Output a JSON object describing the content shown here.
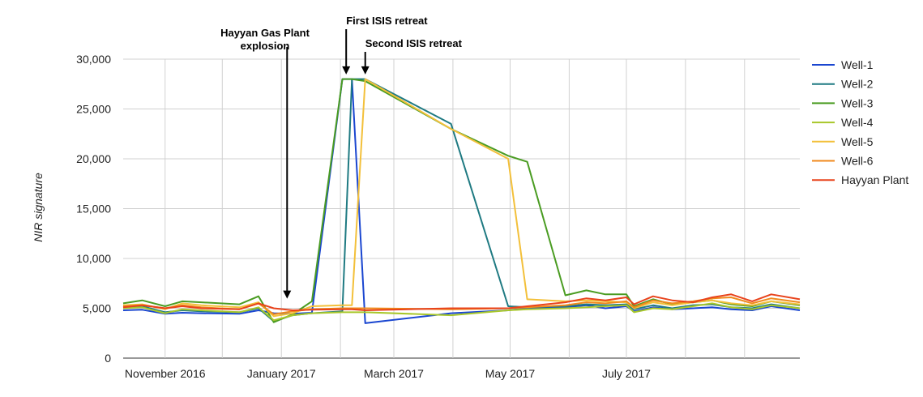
{
  "chart_data": {
    "type": "line",
    "title": "",
    "xlabel": "",
    "ylabel": "NIR signature",
    "xlim": [
      "2016-10-10",
      "2017-09-30"
    ],
    "ylim": [
      0,
      30000
    ],
    "yticks": [
      0,
      5000,
      10000,
      15000,
      20000,
      25000,
      30000
    ],
    "ytick_labels": [
      "0",
      "5,000",
      "10,000",
      "15,000",
      "20,000",
      "25,000",
      "30,000"
    ],
    "xtick_labels": [
      {
        "date": "2016-11-01",
        "label": "November 2016"
      },
      {
        "date": "2017-01-01",
        "label": "January 2017"
      },
      {
        "date": "2017-03-01",
        "label": "March 2017"
      },
      {
        "date": "2017-05-01",
        "label": "May 2017"
      },
      {
        "date": "2017-07-01",
        "label": "July 2017"
      }
    ],
    "grid": true,
    "legend_position": "right",
    "annotations": [
      {
        "text": [
          "Hayyan Gas Plant",
          "explosion"
        ],
        "date": "2017-01-04",
        "value": 5800
      },
      {
        "text": [
          "First ISIS retreat"
        ],
        "date": "2017-02-04",
        "value": 28300
      },
      {
        "text": [
          "Second ISIS retreat"
        ],
        "date": "2017-02-14",
        "value": 28300
      }
    ],
    "series": [
      {
        "name": "Well-1",
        "color": "#1a46d0",
        "points": [
          [
            "2016-10-10",
            4800
          ],
          [
            "2016-10-20",
            4850
          ],
          [
            "2016-11-01",
            4450
          ],
          [
            "2016-11-10",
            4550
          ],
          [
            "2016-11-20",
            4500
          ],
          [
            "2016-12-10",
            4450
          ],
          [
            "2016-12-20",
            4800
          ],
          [
            "2016-12-28",
            4500
          ],
          [
            "2017-01-07",
            4450
          ],
          [
            "2017-01-17",
            4550
          ],
          [
            "2017-02-02",
            28000
          ],
          [
            "2017-02-07",
            28000
          ],
          [
            "2017-02-14",
            3500
          ],
          [
            "2017-03-31",
            4500
          ],
          [
            "2017-04-30",
            4800
          ],
          [
            "2017-05-10",
            5000
          ],
          [
            "2017-05-30",
            5100
          ],
          [
            "2017-06-10",
            5300
          ],
          [
            "2017-06-20",
            5000
          ],
          [
            "2017-07-01",
            5200
          ],
          [
            "2017-07-05",
            4700
          ],
          [
            "2017-07-15",
            5100
          ],
          [
            "2017-07-25",
            4900
          ],
          [
            "2017-08-05",
            5000
          ],
          [
            "2017-08-15",
            5100
          ],
          [
            "2017-08-25",
            4900
          ],
          [
            "2017-09-05",
            4800
          ],
          [
            "2017-09-15",
            5200
          ],
          [
            "2017-09-30",
            4800
          ]
        ]
      },
      {
        "name": "Well-2",
        "color": "#1f7a82",
        "points": [
          [
            "2016-10-10",
            5100
          ],
          [
            "2016-10-20",
            5200
          ],
          [
            "2016-11-01",
            4600
          ],
          [
            "2016-11-10",
            4800
          ],
          [
            "2016-11-20",
            4700
          ],
          [
            "2016-12-10",
            4600
          ],
          [
            "2016-12-20",
            5000
          ],
          [
            "2016-12-28",
            3700
          ],
          [
            "2017-01-07",
            4300
          ],
          [
            "2017-01-17",
            4500
          ],
          [
            "2017-02-02",
            4700
          ],
          [
            "2017-02-07",
            28000
          ],
          [
            "2017-02-14",
            28000
          ],
          [
            "2017-03-31",
            23500
          ],
          [
            "2017-04-30",
            5200
          ],
          [
            "2017-05-10",
            5100
          ],
          [
            "2017-05-30",
            5200
          ],
          [
            "2017-06-10",
            5400
          ],
          [
            "2017-06-20",
            5300
          ],
          [
            "2017-07-01",
            5400
          ],
          [
            "2017-07-05",
            4900
          ],
          [
            "2017-07-15",
            5300
          ],
          [
            "2017-07-25",
            5000
          ],
          [
            "2017-08-05",
            5300
          ],
          [
            "2017-08-15",
            5400
          ],
          [
            "2017-08-25",
            5100
          ],
          [
            "2017-09-05",
            5000
          ],
          [
            "2017-09-15",
            5400
          ],
          [
            "2017-09-30",
            5000
          ]
        ]
      },
      {
        "name": "Well-3",
        "color": "#4a9c22",
        "points": [
          [
            "2016-10-10",
            5500
          ],
          [
            "2016-10-20",
            5800
          ],
          [
            "2016-11-01",
            5200
          ],
          [
            "2016-11-10",
            5700
          ],
          [
            "2016-11-20",
            5600
          ],
          [
            "2016-12-10",
            5400
          ],
          [
            "2016-12-20",
            6200
          ],
          [
            "2016-12-28",
            3600
          ],
          [
            "2017-01-07",
            4400
          ],
          [
            "2017-01-17",
            5700
          ],
          [
            "2017-02-02",
            28000
          ],
          [
            "2017-02-07",
            28000
          ],
          [
            "2017-02-14",
            27800
          ],
          [
            "2017-03-31",
            23000
          ],
          [
            "2017-04-30",
            20300
          ],
          [
            "2017-05-10",
            19700
          ],
          [
            "2017-05-30",
            6300
          ],
          [
            "2017-06-10",
            6800
          ],
          [
            "2017-06-20",
            6400
          ],
          [
            "2017-07-01",
            6400
          ],
          [
            "2017-07-05",
            5200
          ],
          [
            "2017-07-15",
            5900
          ],
          [
            "2017-07-25",
            5400
          ],
          [
            "2017-08-05",
            5600
          ],
          [
            "2017-08-15",
            5800
          ],
          [
            "2017-08-25",
            5400
          ],
          [
            "2017-09-05",
            5200
          ],
          [
            "2017-09-15",
            5700
          ],
          [
            "2017-09-30",
            5300
          ]
        ]
      },
      {
        "name": "Well-4",
        "color": "#a8c72a",
        "points": [
          [
            "2016-10-10",
            5000
          ],
          [
            "2016-10-20",
            5100
          ],
          [
            "2016-11-01",
            4500
          ],
          [
            "2016-11-10",
            4900
          ],
          [
            "2016-11-20",
            4800
          ],
          [
            "2016-12-10",
            4600
          ],
          [
            "2016-12-20",
            5100
          ],
          [
            "2016-12-28",
            3800
          ],
          [
            "2017-01-07",
            4300
          ],
          [
            "2017-01-17",
            4500
          ],
          [
            "2017-02-02",
            4600
          ],
          [
            "2017-02-07",
            4600
          ],
          [
            "2017-02-14",
            4600
          ],
          [
            "2017-03-31",
            4300
          ],
          [
            "2017-04-30",
            4800
          ],
          [
            "2017-05-10",
            4900
          ],
          [
            "2017-05-30",
            5000
          ],
          [
            "2017-06-10",
            5100
          ],
          [
            "2017-06-20",
            5200
          ],
          [
            "2017-07-01",
            5300
          ],
          [
            "2017-07-05",
            4600
          ],
          [
            "2017-07-15",
            5000
          ],
          [
            "2017-07-25",
            4900
          ],
          [
            "2017-08-05",
            5200
          ],
          [
            "2017-08-15",
            5500
          ],
          [
            "2017-08-25",
            5100
          ],
          [
            "2017-09-05",
            4900
          ],
          [
            "2017-09-15",
            5300
          ],
          [
            "2017-09-30",
            5000
          ]
        ]
      },
      {
        "name": "Well-5",
        "color": "#f3c03a",
        "points": [
          [
            "2016-10-10",
            5300
          ],
          [
            "2016-10-20",
            5400
          ],
          [
            "2016-11-01",
            4900
          ],
          [
            "2016-11-10",
            5500
          ],
          [
            "2016-11-20",
            5300
          ],
          [
            "2016-12-10",
            5100
          ],
          [
            "2016-12-20",
            5600
          ],
          [
            "2016-12-28",
            4200
          ],
          [
            "2017-01-07",
            4500
          ],
          [
            "2017-01-17",
            5200
          ],
          [
            "2017-02-02",
            5300
          ],
          [
            "2017-02-07",
            5300
          ],
          [
            "2017-02-14",
            28000
          ],
          [
            "2017-03-31",
            23000
          ],
          [
            "2017-04-30",
            20000
          ],
          [
            "2017-05-10",
            5900
          ],
          [
            "2017-05-30",
            5700
          ],
          [
            "2017-06-10",
            5800
          ],
          [
            "2017-06-20",
            5700
          ],
          [
            "2017-07-01",
            5600
          ],
          [
            "2017-07-05",
            5000
          ],
          [
            "2017-07-15",
            5600
          ],
          [
            "2017-07-25",
            5300
          ],
          [
            "2017-08-05",
            5600
          ],
          [
            "2017-08-15",
            5800
          ],
          [
            "2017-08-25",
            5500
          ],
          [
            "2017-09-05",
            5300
          ],
          [
            "2017-09-15",
            5700
          ],
          [
            "2017-09-30",
            5400
          ]
        ]
      },
      {
        "name": "Well-6",
        "color": "#f08a1c",
        "points": [
          [
            "2016-10-10",
            5200
          ],
          [
            "2016-10-20",
            5300
          ],
          [
            "2016-11-01",
            5000
          ],
          [
            "2016-11-10",
            5300
          ],
          [
            "2016-11-20",
            5100
          ],
          [
            "2016-12-10",
            4900
          ],
          [
            "2016-12-20",
            5500
          ],
          [
            "2016-12-28",
            4400
          ],
          [
            "2017-01-07",
            4700
          ],
          [
            "2017-01-17",
            4900
          ],
          [
            "2017-02-02",
            5000
          ],
          [
            "2017-02-07",
            5000
          ],
          [
            "2017-02-14",
            5000
          ],
          [
            "2017-03-31",
            4900
          ],
          [
            "2017-04-30",
            5000
          ],
          [
            "2017-05-10",
            5100
          ],
          [
            "2017-05-30",
            5300
          ],
          [
            "2017-06-10",
            5600
          ],
          [
            "2017-06-20",
            5500
          ],
          [
            "2017-07-01",
            5700
          ],
          [
            "2017-07-05",
            5100
          ],
          [
            "2017-07-15",
            5800
          ],
          [
            "2017-07-25",
            5500
          ],
          [
            "2017-08-05",
            5700
          ],
          [
            "2017-08-15",
            6000
          ],
          [
            "2017-08-25",
            6100
          ],
          [
            "2017-09-05",
            5500
          ],
          [
            "2017-09-15",
            6000
          ],
          [
            "2017-09-30",
            5600
          ]
        ]
      },
      {
        "name": "Hayyan Plant",
        "color": "#e8431c",
        "points": [
          [
            "2016-10-10",
            5100
          ],
          [
            "2016-10-20",
            5300
          ],
          [
            "2016-11-01",
            5000
          ],
          [
            "2016-11-10",
            5200
          ],
          [
            "2016-11-20",
            5000
          ],
          [
            "2016-12-10",
            4900
          ],
          [
            "2016-12-20",
            5500
          ],
          [
            "2016-12-28",
            5000
          ],
          [
            "2017-01-07",
            4800
          ],
          [
            "2017-01-17",
            4850
          ],
          [
            "2017-02-02",
            4900
          ],
          [
            "2017-02-07",
            4900
          ],
          [
            "2017-02-14",
            4800
          ],
          [
            "2017-03-31",
            5000
          ],
          [
            "2017-04-30",
            5000
          ],
          [
            "2017-05-10",
            5200
          ],
          [
            "2017-05-30",
            5600
          ],
          [
            "2017-06-10",
            6000
          ],
          [
            "2017-06-20",
            5800
          ],
          [
            "2017-07-01",
            6100
          ],
          [
            "2017-07-05",
            5400
          ],
          [
            "2017-07-15",
            6200
          ],
          [
            "2017-07-25",
            5800
          ],
          [
            "2017-08-05",
            5600
          ],
          [
            "2017-08-15",
            6100
          ],
          [
            "2017-08-25",
            6400
          ],
          [
            "2017-09-05",
            5700
          ],
          [
            "2017-09-15",
            6400
          ],
          [
            "2017-09-30",
            5900
          ]
        ]
      }
    ]
  }
}
